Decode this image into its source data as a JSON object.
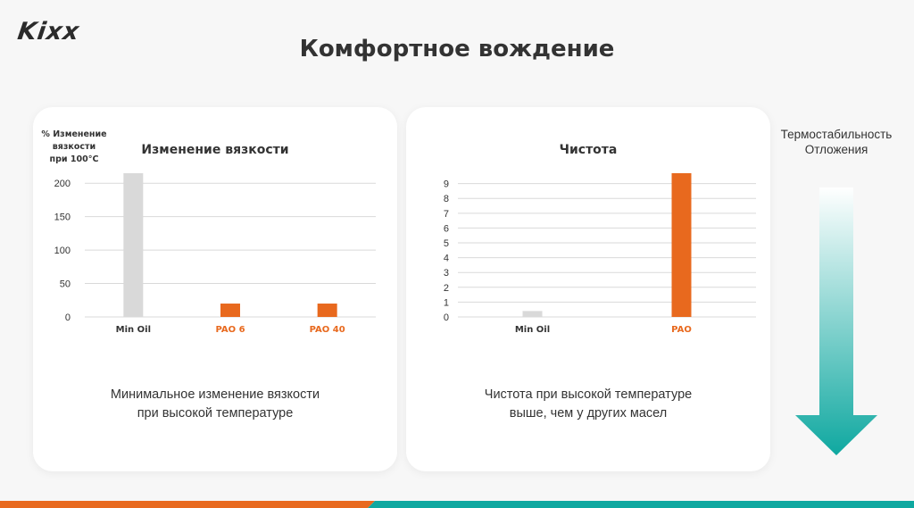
{
  "brand": {
    "logo": "Kixx"
  },
  "page": {
    "title": "Комфортное вождение"
  },
  "colors": {
    "orange": "#e8691e",
    "gray": "#d9d9d9",
    "teal": "#0fa8a0",
    "text": "#333333"
  },
  "chart_data": [
    {
      "type": "bar",
      "title": "Изменение вязкости",
      "ylabel_lines": [
        "% Изменение",
        "вязкости",
        "при 100°C"
      ],
      "categories": [
        "Min Oil",
        "PAO 6",
        "PAO 40"
      ],
      "category_colors": [
        "#333333",
        "#e8691e",
        "#e8691e"
      ],
      "values": [
        215,
        20,
        20
      ],
      "bar_colors": [
        "#d9d9d9",
        "#e8691e",
        "#e8691e"
      ],
      "yticks": [
        0,
        50,
        100,
        150,
        200
      ],
      "ylim": [
        0,
        215
      ],
      "grid": true
    },
    {
      "type": "bar",
      "title": "Чистота",
      "categories": [
        "Min Oil",
        "PAO"
      ],
      "category_colors": [
        "#333333",
        "#e8691e"
      ],
      "values": [
        0.4,
        9.7
      ],
      "bar_colors": [
        "#d9d9d9",
        "#e8691e"
      ],
      "yticks": [
        0,
        1,
        2,
        3,
        4,
        5,
        6,
        7,
        8,
        9
      ],
      "ylim": [
        0,
        9.7
      ],
      "grid": true
    }
  ],
  "captions": {
    "left": [
      "Минимальное изменение вязкости",
      "при высокой температуре"
    ],
    "right": [
      "Чистота при высокой температуре",
      "выше, чем у других масел"
    ]
  },
  "side": {
    "line1": "Термостабильность",
    "line2": "Отложения"
  }
}
